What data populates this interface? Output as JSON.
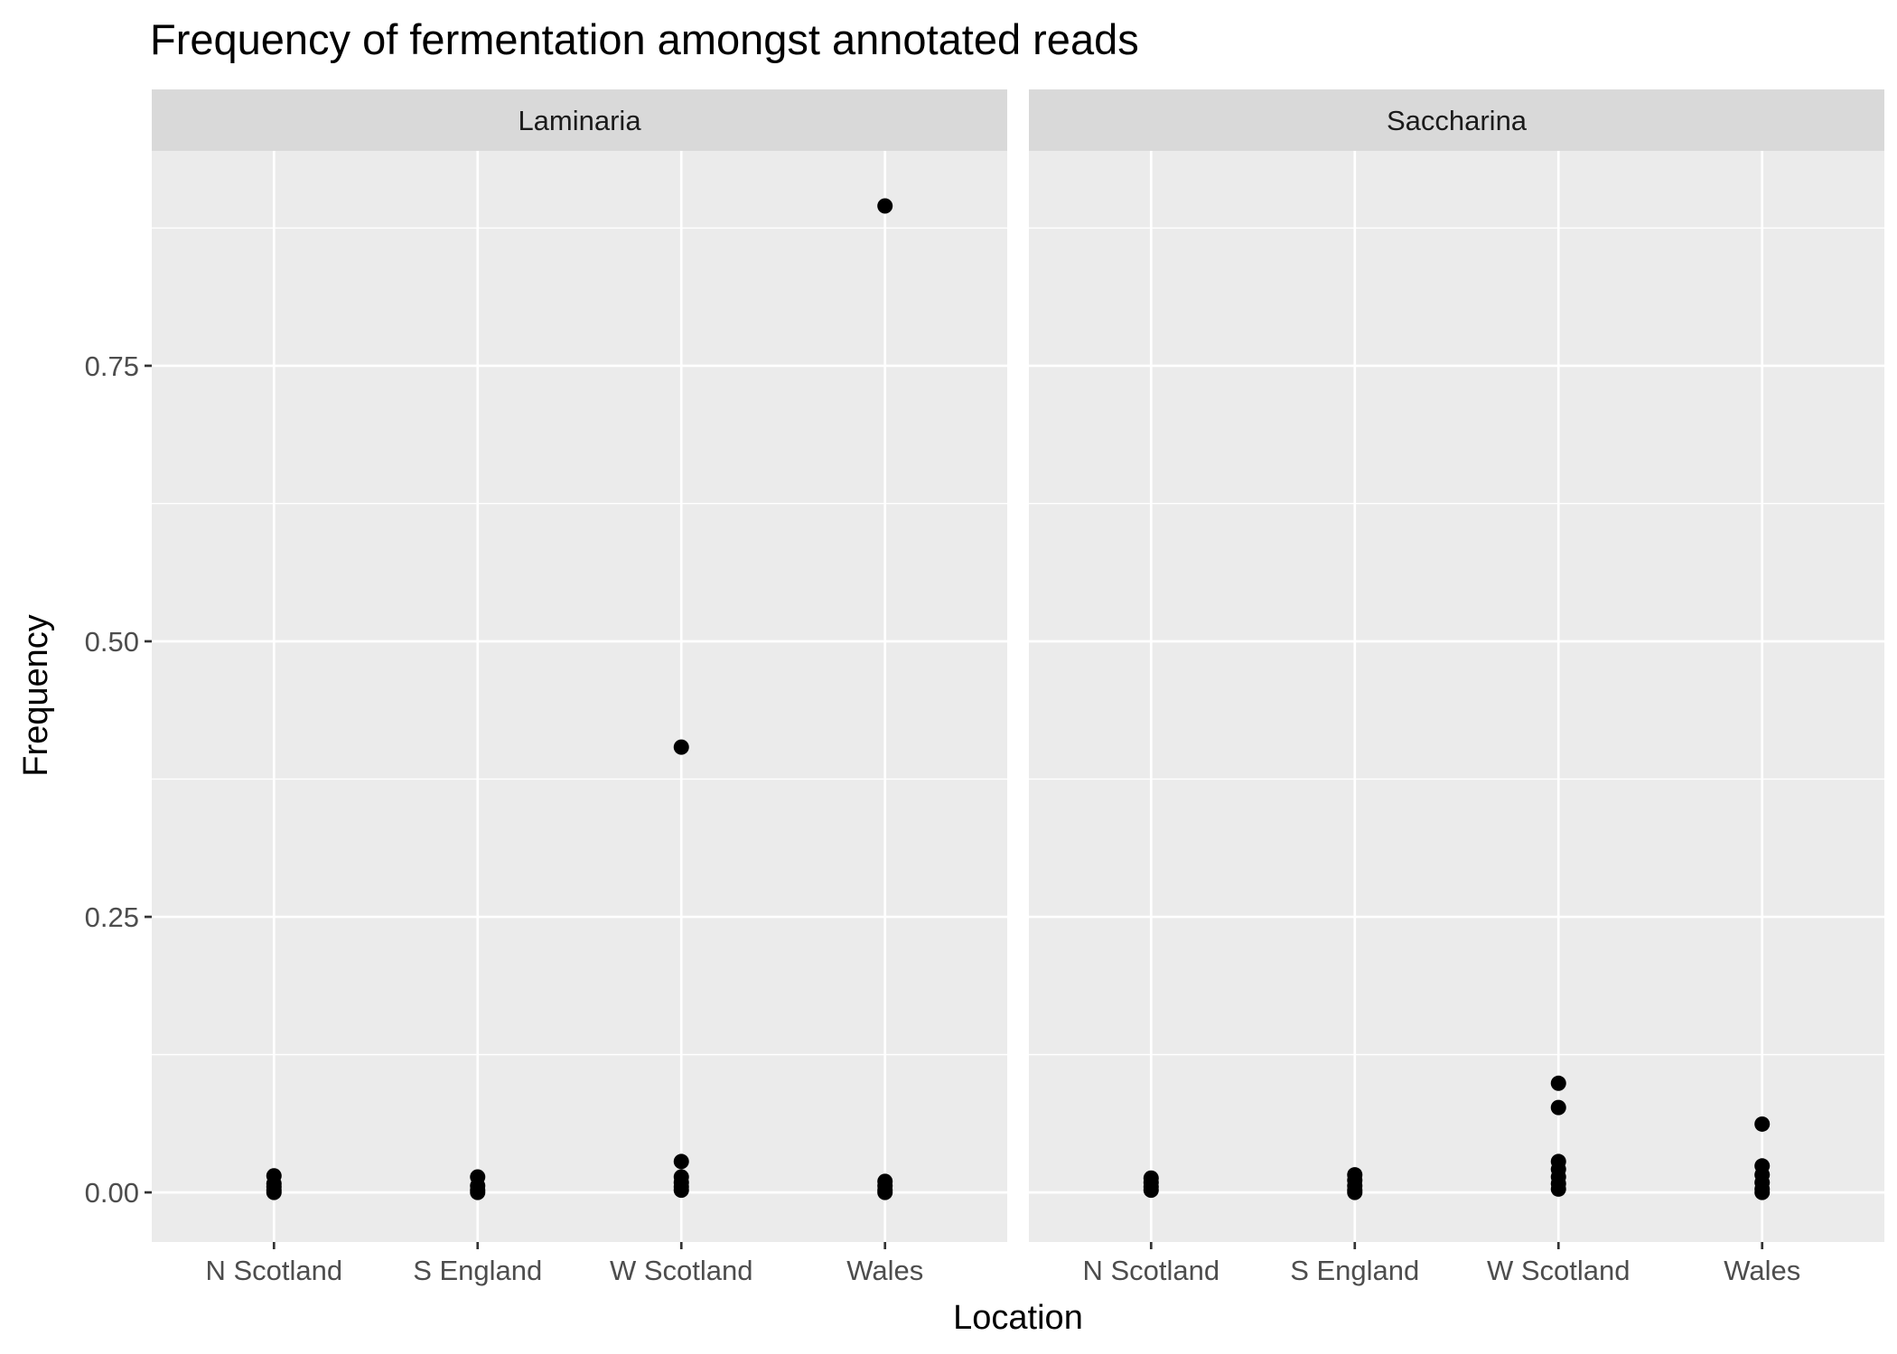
{
  "chart_data": {
    "type": "scatter",
    "title": "Frequency of fermentation amongst annotated reads",
    "xlabel": "Location",
    "ylabel": "Frequency",
    "categories": [
      "N Scotland",
      "S England",
      "W Scotland",
      "Wales"
    ],
    "yticks": [
      {
        "value": 0.0,
        "label": "0.00"
      },
      {
        "value": 0.25,
        "label": "0.25"
      },
      {
        "value": 0.5,
        "label": "0.50"
      },
      {
        "value": 0.75,
        "label": "0.75"
      }
    ],
    "ylim": [
      -0.045,
      0.945
    ],
    "grid": true,
    "colors": {
      "panel_background": "#ebebeb",
      "strip_background": "#d9d9d9",
      "grid": "#ffffff",
      "point": "#000000",
      "tick": "#333333"
    },
    "panels": [
      {
        "strip": "Laminaria",
        "points": [
          {
            "x": "N Scotland",
            "y": 0.015
          },
          {
            "x": "N Scotland",
            "y": 0.008
          },
          {
            "x": "N Scotland",
            "y": 0.005
          },
          {
            "x": "N Scotland",
            "y": 0.002
          },
          {
            "x": "N Scotland",
            "y": 0.0
          },
          {
            "x": "S England",
            "y": 0.014
          },
          {
            "x": "S England",
            "y": 0.006
          },
          {
            "x": "S England",
            "y": 0.002
          },
          {
            "x": "S England",
            "y": 0.0
          },
          {
            "x": "W Scotland",
            "y": 0.404
          },
          {
            "x": "W Scotland",
            "y": 0.028
          },
          {
            "x": "W Scotland",
            "y": 0.014
          },
          {
            "x": "W Scotland",
            "y": 0.009
          },
          {
            "x": "W Scotland",
            "y": 0.005
          },
          {
            "x": "W Scotland",
            "y": 0.002
          },
          {
            "x": "Wales",
            "y": 0.895
          },
          {
            "x": "Wales",
            "y": 0.01
          },
          {
            "x": "Wales",
            "y": 0.006
          },
          {
            "x": "Wales",
            "y": 0.002
          },
          {
            "x": "Wales",
            "y": 0.0
          }
        ]
      },
      {
        "strip": "Saccharina",
        "points": [
          {
            "x": "N Scotland",
            "y": 0.013
          },
          {
            "x": "N Scotland",
            "y": 0.009
          },
          {
            "x": "N Scotland",
            "y": 0.005
          },
          {
            "x": "N Scotland",
            "y": 0.002
          },
          {
            "x": "S England",
            "y": 0.016
          },
          {
            "x": "S England",
            "y": 0.011
          },
          {
            "x": "S England",
            "y": 0.006
          },
          {
            "x": "S England",
            "y": 0.002
          },
          {
            "x": "S England",
            "y": 0.0
          },
          {
            "x": "W Scotland",
            "y": 0.099
          },
          {
            "x": "W Scotland",
            "y": 0.077
          },
          {
            "x": "W Scotland",
            "y": 0.028
          },
          {
            "x": "W Scotland",
            "y": 0.021
          },
          {
            "x": "W Scotland",
            "y": 0.014
          },
          {
            "x": "W Scotland",
            "y": 0.008
          },
          {
            "x": "W Scotland",
            "y": 0.003
          },
          {
            "x": "Wales",
            "y": 0.062
          },
          {
            "x": "Wales",
            "y": 0.024
          },
          {
            "x": "Wales",
            "y": 0.016
          },
          {
            "x": "Wales",
            "y": 0.009
          },
          {
            "x": "Wales",
            "y": 0.003
          },
          {
            "x": "Wales",
            "y": 0.0
          }
        ]
      }
    ]
  }
}
